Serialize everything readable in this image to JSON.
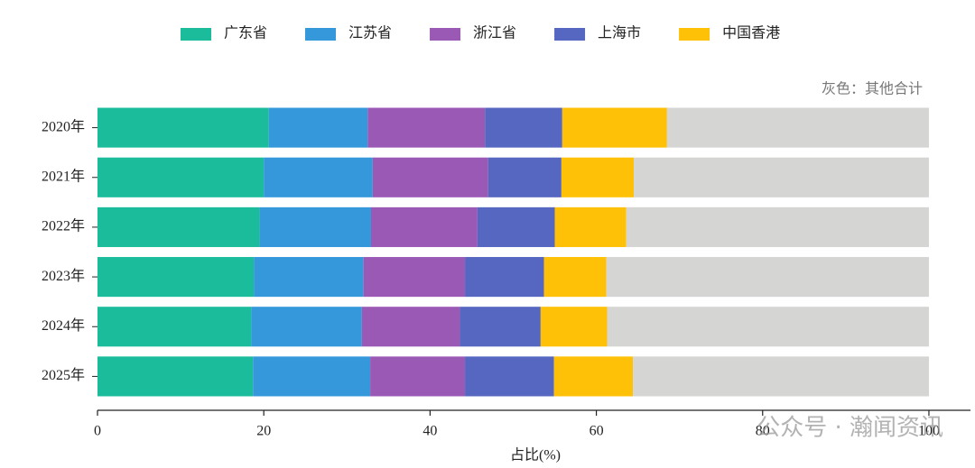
{
  "chart_data": {
    "type": "stacked-barh",
    "categories": [
      "2020年",
      "2021年",
      "2022年",
      "2023年",
      "2024年",
      "2025年"
    ],
    "series": [
      {
        "name": "广东省",
        "color": "#1abc9c",
        "values": [
          20.6,
          20.0,
          19.5,
          18.8,
          18.5,
          18.7
        ]
      },
      {
        "name": "江苏省",
        "color": "#3498db",
        "values": [
          11.9,
          13.1,
          13.4,
          13.2,
          13.3,
          14.1
        ]
      },
      {
        "name": "浙江省",
        "color": "#9b59b6",
        "values": [
          14.1,
          13.9,
          12.8,
          12.2,
          11.8,
          11.4
        ]
      },
      {
        "name": "上海市",
        "color": "#5567c0",
        "values": [
          9.3,
          8.8,
          9.3,
          9.5,
          9.7,
          10.7
        ]
      },
      {
        "name": "中国香港",
        "color": "#ffc107",
        "values": [
          12.6,
          8.7,
          8.6,
          7.5,
          8.0,
          9.5
        ]
      },
      {
        "color": "#d5d5d3",
        "values": [
          31.5,
          35.5,
          36.4,
          38.8,
          38.7,
          35.6
        ]
      }
    ],
    "annotation": "灰色：其他合计",
    "xlabel": "占比(%)",
    "xlim": [
      0,
      105
    ],
    "xticks": [
      0,
      20,
      40,
      60,
      80,
      100
    ],
    "watermark": "公众号 · 瀚闻资讯"
  }
}
